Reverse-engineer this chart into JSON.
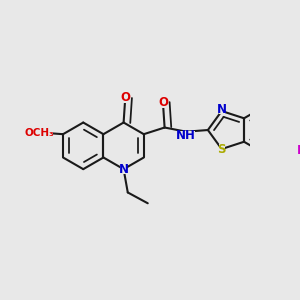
{
  "bg_color": "#e8e8e8",
  "bond_color": "#1a1a1a",
  "bond_width": 1.5,
  "atom_colors": {
    "O": "#dd0000",
    "N": "#0000cc",
    "S": "#aaaa00",
    "F": "#cc00cc",
    "C": "#1a1a1a"
  },
  "font_size": 8.5,
  "fig_size": [
    3.0,
    3.0
  ],
  "dpi": 100
}
